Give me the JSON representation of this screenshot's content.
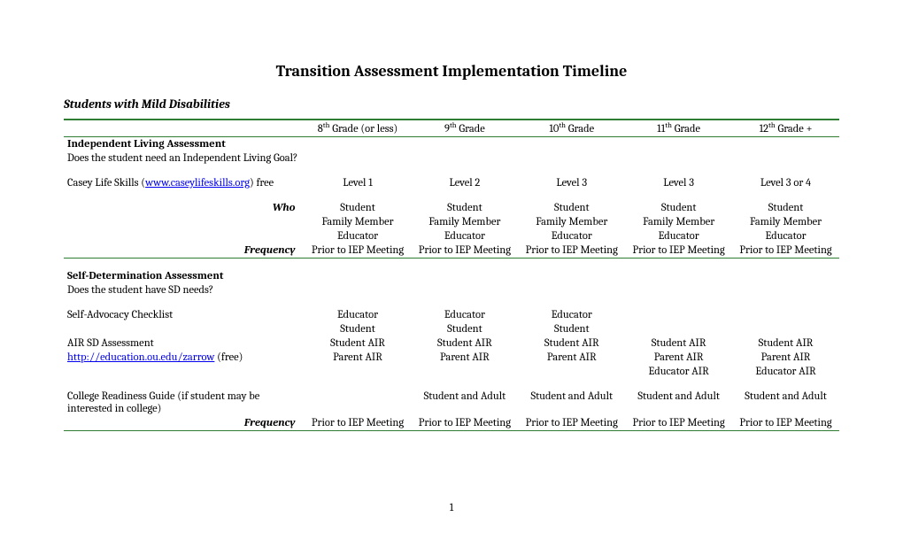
{
  "title": "Transition Assessment Implementation Timeline",
  "subtitle": "Students with Mild Disabilities",
  "headers": {
    "c1": "8",
    "c1_suffix": " Grade (or less)",
    "c2": "9",
    "c2_suffix": " Grade",
    "c3": "10",
    "c3_suffix": " Grade",
    "c4": "11",
    "c4_suffix": " Grade",
    "c5": "12",
    "c5_suffix": " Grade +"
  },
  "sec1": {
    "heading": "Independent Living Assessment",
    "question": "Does the student need an Independent Living Goal?",
    "casey_label_a": "Casey Life Skills (",
    "casey_link": "www.caseylifeskills.org",
    "casey_label_b": ") free",
    "casey": {
      "c1": "Level 1",
      "c2": "Level 2",
      "c3": "Level 3",
      "c4": "Level 3",
      "c5": "Level 3 or 4"
    },
    "who_label": "Who",
    "who_r1": {
      "c1": "Student",
      "c2": "Student",
      "c3": "Student",
      "c4": "Student",
      "c5": "Student"
    },
    "who_r2": {
      "c1": "Family Member",
      "c2": "Family Member",
      "c3": "Family Member",
      "c4": "Family Member",
      "c5": "Family Member"
    },
    "who_r3": {
      "c1": "Educator",
      "c2": "Educator",
      "c3": "Educator",
      "c4": "Educator",
      "c5": "Educator"
    },
    "freq_label": "Frequency",
    "freq": {
      "c1": "Prior to IEP Meeting",
      "c2": "Prior to IEP Meeting",
      "c3": "Prior to IEP Meeting",
      "c4": "Prior to IEP Meeting",
      "c5": "Prior to IEP Meeting"
    }
  },
  "sec2": {
    "heading": "Self-Determination Assessment",
    "question": "Does the student have SD needs?",
    "selfadv_label": "Self-Advocacy Checklist",
    "selfadv_r1": {
      "c1": "Educator",
      "c2": "Educator",
      "c3": "Educator",
      "c4": "",
      "c5": ""
    },
    "selfadv_r2": {
      "c1": "Student",
      "c2": "Student",
      "c3": "Student",
      "c4": "",
      "c5": ""
    },
    "air_label": "AIR SD Assessment",
    "air_r1": {
      "c1": "Student AIR",
      "c2": "Student AIR",
      "c3": "Student AIR",
      "c4": "Student AIR",
      "c5": "Student AIR"
    },
    "air_link": "http://education.ou.edu/zarrow",
    "air_link_suffix": " (free)",
    "air_r2": {
      "c1": "Parent AIR",
      "c2": "Parent AIR",
      "c3": "Parent AIR",
      "c4": "Parent AIR",
      "c5": "Parent AIR"
    },
    "air_r3": {
      "c1": "",
      "c2": "",
      "c3": "",
      "c4": "Educator AIR",
      "c5": "Educator AIR"
    },
    "college_label": "College Readiness Guide (if student may be interested in college)",
    "college": {
      "c1": "",
      "c2": "Student and Adult",
      "c3": "Student and Adult",
      "c4": "Student and Adult",
      "c5": "Student and Adult"
    },
    "freq_label": "Frequency",
    "freq": {
      "c1": "Prior to IEP Meeting",
      "c2": "Prior to IEP Meeting",
      "c3": "Prior to IEP Meeting",
      "c4": "Prior to IEP Meeting",
      "c5": "Prior to IEP Meeting"
    }
  },
  "pagenum": "1",
  "colors": {
    "green": "#2e7d32",
    "link": "#0000ee",
    "text": "#000000",
    "bg": "#ffffff"
  }
}
